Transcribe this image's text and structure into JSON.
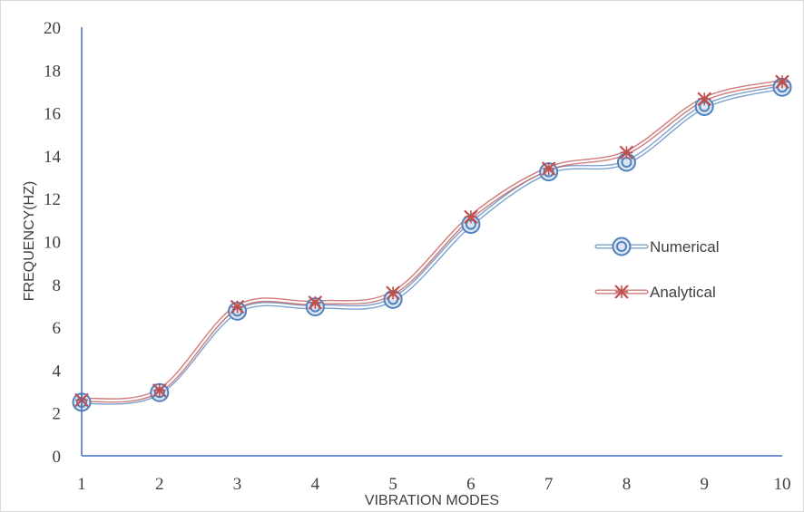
{
  "chart_data": {
    "type": "line",
    "xlabel": "VIBRATION MODES",
    "ylabel": "FREQUENCY(HZ)",
    "x": [
      1,
      2,
      3,
      4,
      5,
      6,
      7,
      8,
      9,
      10
    ],
    "xlim": [
      1,
      10
    ],
    "ylim": [
      0,
      20
    ],
    "yticks": [
      0,
      2,
      4,
      6,
      8,
      10,
      12,
      14,
      16,
      18,
      20
    ],
    "grid": false,
    "legend": "right",
    "series": [
      {
        "name": "Numerical",
        "values": [
          2.5,
          2.95,
          6.75,
          6.95,
          7.3,
          10.8,
          13.25,
          13.7,
          16.3,
          17.2
        ],
        "color": "#4f81bd",
        "marker": "circle-ring"
      },
      {
        "name": "Analytical",
        "values": [
          2.6,
          3.05,
          6.95,
          7.15,
          7.6,
          11.15,
          13.4,
          14.15,
          16.65,
          17.45
        ],
        "color": "#c0504d",
        "marker": "asterisk-cross"
      }
    ]
  }
}
